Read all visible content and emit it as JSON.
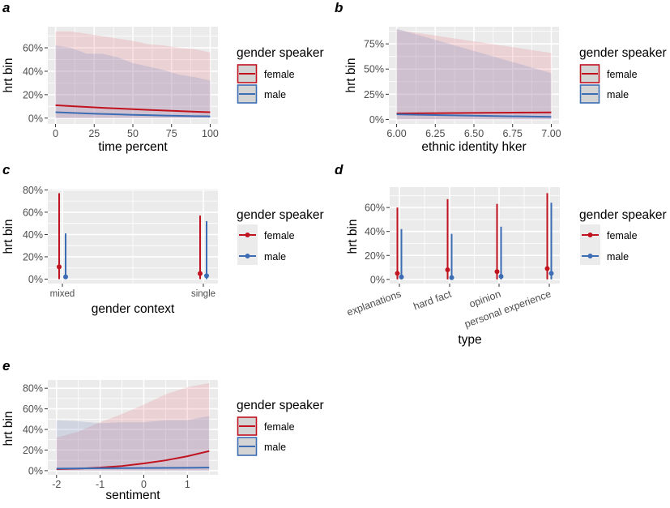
{
  "colors": {
    "female": "#c1121f",
    "male": "#3c6db4",
    "panel_bg": "#ebebeb",
    "grid": "#ffffff"
  },
  "chart_data": [
    {
      "panel": "a",
      "type": "area",
      "xlabel": "time percent",
      "ylabel": "hrt bin",
      "xticks": [
        0,
        25,
        50,
        75,
        100
      ],
      "xtick_labels": [
        "0",
        "25",
        "50",
        "75",
        "100"
      ],
      "yticks": [
        0,
        20,
        40,
        60
      ],
      "ytick_labels": [
        "0%",
        "20%",
        "40%",
        "60%"
      ],
      "xlim": [
        -5,
        105
      ],
      "ylim": [
        -5,
        78
      ],
      "grid": true,
      "legend": {
        "title": "gender speaker",
        "position": "right",
        "style": "ribbon",
        "entries": [
          "female",
          "male"
        ]
      },
      "x": [
        0,
        10,
        20,
        30,
        40,
        50,
        60,
        70,
        80,
        90,
        100
      ],
      "series": [
        {
          "name": "female",
          "values": [
            11,
            10.2,
            9.5,
            8.8,
            8.2,
            7.6,
            7,
            6.5,
            6,
            5.5,
            5
          ],
          "lower": [
            0,
            0,
            0,
            0,
            0,
            0,
            0,
            0,
            0,
            0,
            0
          ],
          "upper": [
            74,
            74,
            72,
            70,
            68,
            66,
            63,
            62,
            60,
            59,
            56
          ]
        },
        {
          "name": "male",
          "values": [
            5,
            4.5,
            4,
            3.6,
            3.2,
            2.8,
            2.5,
            2.2,
            1.9,
            1.7,
            1.5
          ],
          "lower": [
            0,
            0,
            0,
            0,
            0,
            0,
            0,
            0,
            0,
            0,
            0
          ],
          "upper": [
            62,
            60,
            55,
            55,
            52,
            47,
            44,
            41,
            37,
            35,
            32
          ]
        }
      ]
    },
    {
      "panel": "b",
      "type": "area",
      "xlabel": "ethnic identity hker",
      "ylabel": "hrt bin",
      "xticks": [
        6,
        6.25,
        6.5,
        6.75,
        7
      ],
      "xtick_labels": [
        "6.00",
        "6.25",
        "6.50",
        "6.75",
        "7.00"
      ],
      "yticks": [
        0,
        25,
        50,
        75
      ],
      "ytick_labels": [
        "0%",
        "25%",
        "50%",
        "75%"
      ],
      "xlim": [
        5.95,
        7.05
      ],
      "ylim": [
        -4.5,
        92
      ],
      "grid": true,
      "legend": {
        "title": "gender speaker",
        "position": "right",
        "style": "ribbon",
        "entries": [
          "female",
          "male"
        ]
      },
      "x": [
        6,
        7
      ],
      "series": [
        {
          "name": "female",
          "values": [
            6,
            7
          ],
          "lower": [
            0,
            0
          ],
          "upper": [
            89,
            66
          ]
        },
        {
          "name": "male",
          "values": [
            5,
            2.5
          ],
          "lower": [
            0,
            0
          ],
          "upper": [
            90,
            46
          ]
        }
      ]
    },
    {
      "panel": "c",
      "type": "pointrange",
      "xlabel": "gender context",
      "ylabel": "hrt bin",
      "categories": [
        "mixed",
        "single"
      ],
      "yticks": [
        0,
        20,
        40,
        60,
        80
      ],
      "ytick_labels": [
        "0%",
        "20%",
        "40%",
        "60%",
        "80%"
      ],
      "ylim": [
        -4,
        81
      ],
      "grid": true,
      "legend": {
        "title": "gender speaker",
        "position": "right",
        "style": "pointrange",
        "entries": [
          "female",
          "male"
        ]
      },
      "series": [
        {
          "name": "female",
          "values": [
            11,
            5
          ],
          "lower": [
            0,
            0
          ],
          "upper": [
            77,
            57
          ]
        },
        {
          "name": "male",
          "values": [
            2,
            3
          ],
          "lower": [
            0,
            0
          ],
          "upper": [
            41,
            52
          ]
        }
      ]
    },
    {
      "panel": "d",
      "type": "pointrange",
      "xlabel": "type",
      "ylabel": "hrt bin",
      "categories": [
        "explanations",
        "hard fact",
        "opinion",
        "personal experience"
      ],
      "yticks": [
        0,
        20,
        40,
        60
      ],
      "ytick_labels": [
        "0%",
        "20%",
        "40%",
        "60%"
      ],
      "ylim": [
        -3.5,
        77
      ],
      "grid": true,
      "legend": {
        "title": "gender speaker",
        "position": "right",
        "style": "pointrange",
        "entries": [
          "female",
          "male"
        ]
      },
      "series": [
        {
          "name": "female",
          "values": [
            5,
            8,
            6.5,
            9
          ],
          "lower": [
            0,
            0,
            0,
            0
          ],
          "upper": [
            60,
            67,
            63,
            72
          ]
        },
        {
          "name": "male",
          "values": [
            2,
            1.5,
            2.5,
            5
          ],
          "lower": [
            0,
            0,
            0,
            0
          ],
          "upper": [
            42,
            38,
            44,
            64
          ]
        }
      ]
    },
    {
      "panel": "e",
      "type": "area",
      "xlabel": "sentiment",
      "ylabel": "hrt bin",
      "xticks": [
        -2,
        -1,
        0,
        1
      ],
      "xtick_labels": [
        "-2",
        "-1",
        "0",
        "1"
      ],
      "yticks": [
        0,
        20,
        40,
        60,
        80
      ],
      "ytick_labels": [
        "0%",
        "20%",
        "40%",
        "60%",
        "80%"
      ],
      "xlim": [
        -2.2,
        1.7
      ],
      "ylim": [
        -4,
        88
      ],
      "grid": true,
      "legend": {
        "title": "gender speaker",
        "position": "right",
        "style": "ribbon",
        "entries": [
          "female",
          "male"
        ]
      },
      "x": [
        -2,
        -1.5,
        -1,
        -0.5,
        0,
        0.5,
        1,
        1.5
      ],
      "series": [
        {
          "name": "female",
          "values": [
            1.5,
            2,
            3,
            4.5,
            7,
            10,
            14,
            19
          ],
          "lower": [
            0,
            0,
            0,
            0,
            0,
            0,
            0,
            0
          ],
          "upper": [
            32,
            38,
            47,
            55,
            64,
            74,
            81,
            85
          ]
        },
        {
          "name": "male",
          "values": [
            2,
            2.2,
            2.4,
            2.5,
            2.6,
            2.7,
            2.8,
            3
          ],
          "lower": [
            0,
            0,
            0,
            0,
            0,
            0,
            0,
            0
          ],
          "upper": [
            49,
            48,
            46,
            47,
            47,
            49,
            49,
            53
          ]
        }
      ]
    }
  ]
}
